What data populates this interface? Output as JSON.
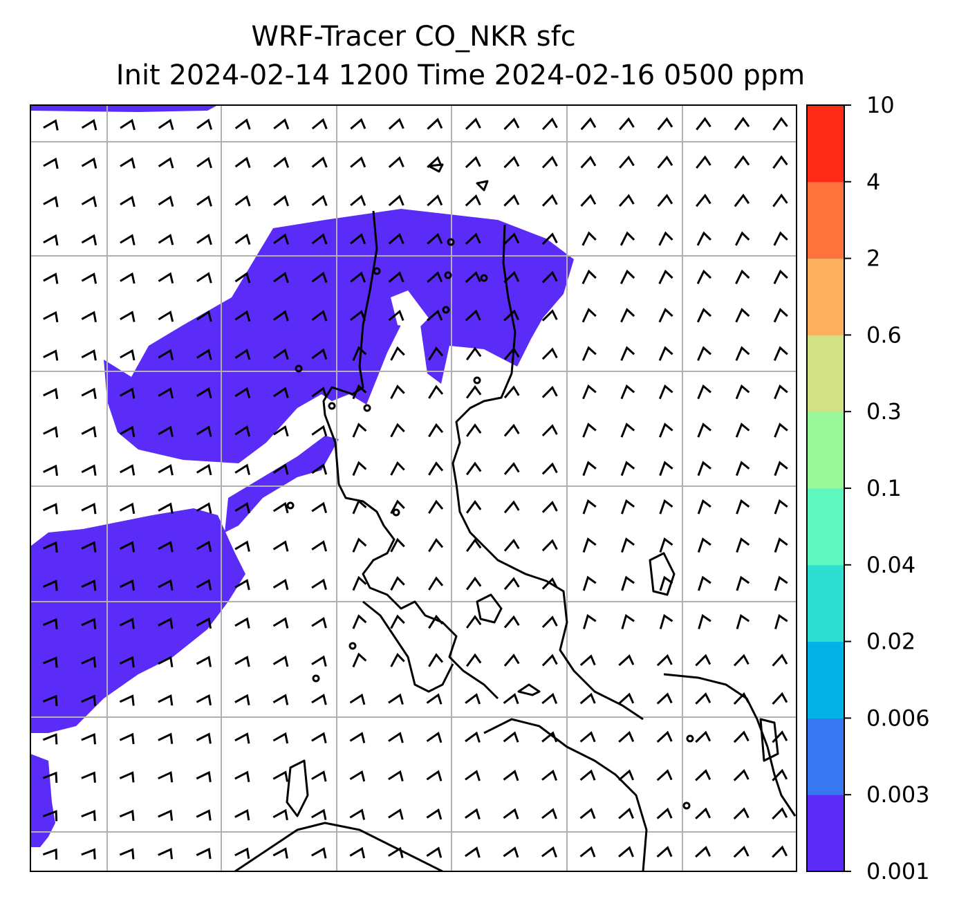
{
  "title": {
    "line1": "WRF-Tracer CO_NKR sfc",
    "line2": "Init 2024-02-14 1200 Time 2024-02-16 0500 ppm"
  },
  "colorbar": {
    "levels": [
      "0.001",
      "0.003",
      "0.006",
      "0.02",
      "0.04",
      "0.1",
      "0.3",
      "0.6",
      "2",
      "4",
      "10"
    ],
    "colors": [
      "#5b2cf7",
      "#3778f2",
      "#03b3e8",
      "#2edfd1",
      "#5ff7c0",
      "#98f89a",
      "#d1e184",
      "#fdb15f",
      "#fe733b",
      "#ff2a15"
    ]
  },
  "map": {
    "tracer_fill_color": "#5b2cf7",
    "gridline_color": "#b0b0b0",
    "coastline_color": "#000000",
    "wind_barb_color": "#000000"
  }
}
